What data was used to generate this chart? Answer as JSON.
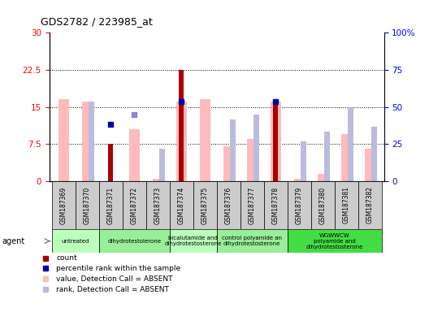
{
  "title": "GDS2782 / 223985_at",
  "samples": [
    "GSM187369",
    "GSM187370",
    "GSM187371",
    "GSM187372",
    "GSM187373",
    "GSM187374",
    "GSM187375",
    "GSM187376",
    "GSM187377",
    "GSM187378",
    "GSM187379",
    "GSM187380",
    "GSM187381",
    "GSM187382"
  ],
  "count_values": [
    null,
    null,
    7.5,
    null,
    null,
    22.5,
    null,
    null,
    null,
    16.0,
    null,
    null,
    null,
    null
  ],
  "pink_bar_values": [
    16.5,
    16.0,
    null,
    10.5,
    0.5,
    16.0,
    16.5,
    7.0,
    8.5,
    16.0,
    0.5,
    1.5,
    9.5,
    6.5
  ],
  "pink_is_count": [
    false,
    false,
    false,
    false,
    false,
    false,
    false,
    false,
    false,
    false,
    false,
    false,
    false,
    false
  ],
  "blue_dot_values": [
    null,
    null,
    11.5,
    13.5,
    null,
    16.0,
    null,
    null,
    null,
    16.0,
    null,
    null,
    null,
    null
  ],
  "blue_dot_dark": [
    false,
    false,
    true,
    false,
    false,
    true,
    false,
    false,
    false,
    true,
    false,
    false,
    false,
    false
  ],
  "lavender_bar_values": [
    null,
    16.0,
    null,
    null,
    6.5,
    null,
    null,
    12.5,
    13.5,
    null,
    8.0,
    10.0,
    15.0,
    11.0
  ],
  "count_present": [
    false,
    false,
    true,
    false,
    false,
    true,
    false,
    false,
    false,
    true,
    false,
    false,
    false,
    false
  ],
  "left_yticks": [
    0,
    7.5,
    15.0,
    22.5,
    30
  ],
  "right_yticks": [
    0,
    25,
    50,
    75,
    100
  ],
  "left_ylim": [
    0,
    30
  ],
  "right_ylim": [
    0,
    100
  ],
  "agent_groups": [
    {
      "label": "untreated",
      "start": 0,
      "end": 1,
      "color": "#bbffbb"
    },
    {
      "label": "dihydrotestolerone",
      "start": 2,
      "end": 4,
      "color": "#99ee99"
    },
    {
      "label": "bicalutamide and\ndihydrotestosterone",
      "start": 5,
      "end": 6,
      "color": "#bbffbb"
    },
    {
      "label": "control polyamide an\ndihydrotestosterone",
      "start": 7,
      "end": 9,
      "color": "#99ee99"
    },
    {
      "label": "WGWWCW\npolyamide and\ndihydrotestosterone",
      "start": 10,
      "end": 13,
      "color": "#44dd44"
    }
  ],
  "count_color": "#aa0000",
  "pink_color": "#ffbbbb",
  "lavender_color": "#bbbbdd",
  "blue_dark_color": "#0000aa",
  "blue_light_color": "#8888cc"
}
